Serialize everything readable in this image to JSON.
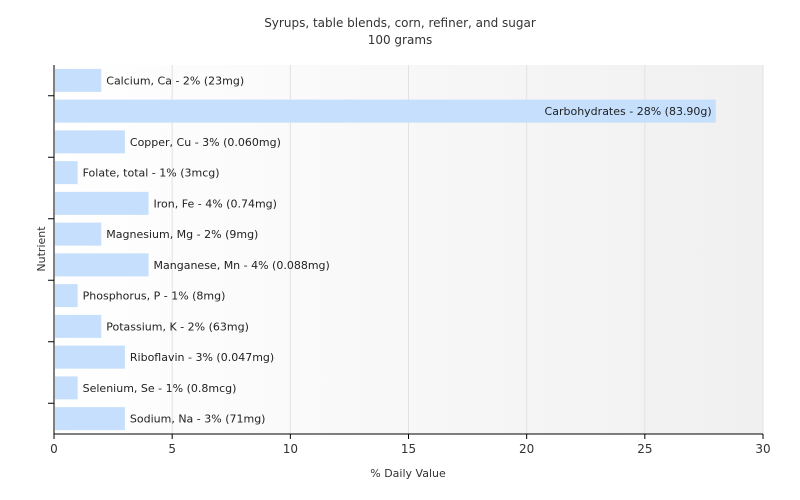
{
  "chart_data": {
    "type": "bar",
    "orientation": "horizontal",
    "title": "Syrups, table blends, corn, refiner, and sugar",
    "subtitle": "100 grams",
    "xlabel": "% Daily Value",
    "ylabel": "Nutrient",
    "xlim": [
      0,
      30
    ],
    "xticks": [
      0,
      5,
      10,
      15,
      20,
      25,
      30
    ],
    "grid": true,
    "legend": "none",
    "bar_color": "#c5dffc",
    "categories": [
      "Calcium, Ca",
      "Carbohydrates",
      "Copper, Cu",
      "Folate, total",
      "Iron, Fe",
      "Magnesium, Mg",
      "Manganese, Mn",
      "Phosphorus, P",
      "Potassium, K",
      "Riboflavin",
      "Selenium, Se",
      "Sodium, Na"
    ],
    "values": [
      2,
      28,
      3,
      1,
      4,
      2,
      4,
      1,
      2,
      3,
      1,
      3
    ],
    "labels": [
      "Calcium, Ca - 2% (23mg)",
      "Carbohydrates - 28% (83.90g)",
      "Copper, Cu - 3% (0.060mg)",
      "Folate, total - 1% (3mcg)",
      "Iron, Fe - 4% (0.74mg)",
      "Magnesium, Mg - 2% (9mg)",
      "Manganese, Mn - 4% (0.088mg)",
      "Phosphorus, P - 1% (8mg)",
      "Potassium, K - 2% (63mg)",
      "Riboflavin - 3% (0.047mg)",
      "Selenium, Se - 1% (0.8mcg)",
      "Sodium, Na - 3% (71mg)"
    ]
  }
}
